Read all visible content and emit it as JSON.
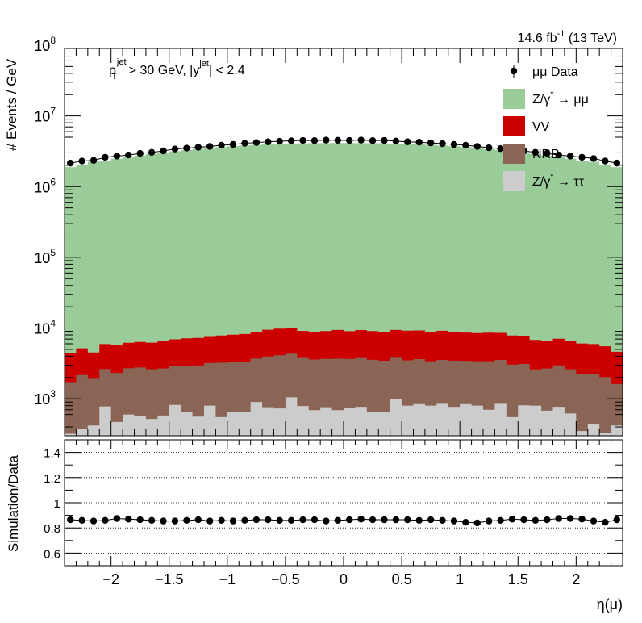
{
  "chart_data": [
    {
      "type": "area",
      "stacked": true,
      "yscale": "log",
      "title": "",
      "lumi_label": "14.6 fb",
      "lumi_sup": "-1",
      "energy_label": " (13 TeV)",
      "cut_label": {
        "p": "p",
        "p_sup": "jet",
        "p_sub": "T",
        "mid": " > 30 GeV,  |y",
        "y_sup": "jet",
        "end": "| < 2.4"
      },
      "ylabel": "# Events / GeV",
      "xlim": [
        -2.4,
        2.4
      ],
      "ylim": [
        300,
        90000000
      ],
      "y_ticks": [
        {
          "value": 1000,
          "base": "10",
          "exp": "3"
        },
        {
          "value": 10000,
          "base": "10",
          "exp": "4"
        },
        {
          "value": 100000,
          "base": "10",
          "exp": "5"
        },
        {
          "value": 1000000,
          "base": "10",
          "exp": "6"
        },
        {
          "value": 10000000,
          "base": "10",
          "exp": "7"
        },
        {
          "value": 100000000,
          "base": "10",
          "exp": "8"
        }
      ],
      "bin_width": 0.1,
      "bin_centers": [
        -2.35,
        -2.25,
        -2.15,
        -2.05,
        -1.95,
        -1.85,
        -1.75,
        -1.65,
        -1.55,
        -1.45,
        -1.35,
        -1.25,
        -1.15,
        -1.05,
        -0.95,
        -0.85,
        -0.75,
        -0.65,
        -0.55,
        -0.45,
        -0.35,
        -0.25,
        -0.15,
        -0.05,
        0.05,
        0.15,
        0.25,
        0.35,
        0.45,
        0.55,
        0.65,
        0.75,
        0.85,
        0.95,
        1.05,
        1.15,
        1.25,
        1.35,
        1.45,
        1.55,
        1.65,
        1.75,
        1.85,
        1.95,
        2.05,
        2.15,
        2.25,
        2.35
      ],
      "series": [
        {
          "name": "Z/γ* → ττ",
          "legend_base": "Z/γ",
          "legend_sup": "*",
          "legend_end": " → ττ",
          "color": "#cccccc",
          "values": [
            320,
            370,
            420,
            780,
            470,
            600,
            570,
            520,
            580,
            820,
            650,
            560,
            800,
            550,
            650,
            660,
            900,
            760,
            730,
            1050,
            790,
            690,
            760,
            690,
            750,
            770,
            660,
            660,
            1000,
            800,
            840,
            800,
            850,
            770,
            840,
            800,
            700,
            850,
            550,
            810,
            800,
            680,
            770,
            620,
            350,
            440,
            330,
            420
          ]
        },
        {
          "name": "NRB",
          "legend_base": "NRB",
          "color": "#8a6555",
          "values": [
            1400,
            1800,
            1500,
            1850,
            1850,
            2100,
            2200,
            2100,
            2100,
            2100,
            2300,
            2400,
            2400,
            2700,
            2700,
            2700,
            2800,
            3200,
            3400,
            3300,
            3000,
            2900,
            2900,
            3000,
            2900,
            3000,
            2900,
            2800,
            2800,
            2700,
            2800,
            2600,
            2700,
            2700,
            2600,
            2600,
            2700,
            2700,
            2500,
            2300,
            1800,
            2000,
            2200,
            2000,
            1900,
            1800,
            1700,
            1200
          ]
        },
        {
          "name": "VV",
          "legend_base": "VV",
          "color": "#cc0000",
          "values": [
            2700,
            3000,
            2600,
            3300,
            3400,
            3500,
            3600,
            3600,
            3800,
            4000,
            4200,
            4300,
            4500,
            4600,
            4700,
            4900,
            5200,
            5500,
            5700,
            5600,
            5300,
            5200,
            5400,
            5700,
            5400,
            5600,
            5500,
            5400,
            5600,
            5700,
            5600,
            5400,
            5600,
            5300,
            5200,
            5100,
            5200,
            5000,
            4800,
            4700,
            4200,
            3900,
            4100,
            4000,
            3800,
            3700,
            3500,
            3000
          ]
        },
        {
          "name": "Z/γ* → μμ",
          "legend_base": "Z/γ",
          "legend_sup": "*",
          "legend_end": " → μμ",
          "color": "#99cc99",
          "values": [
            1880000,
            2000000,
            2240000,
            2330000,
            2480000,
            2620000,
            2750000,
            2880000,
            3020000,
            3150000,
            3280000,
            3400000,
            3510000,
            3620000,
            3720000,
            3810000,
            3890000,
            3960000,
            4010000,
            4050000,
            4080000,
            4100000,
            4110000,
            4120000,
            4120000,
            4110000,
            4100000,
            4080000,
            4050000,
            4010000,
            3960000,
            3890000,
            3810000,
            3720000,
            3620000,
            3510000,
            3400000,
            3280000,
            3150000,
            3020000,
            2880000,
            2750000,
            2620000,
            2480000,
            2330000,
            2240000,
            2000000,
            1880000
          ]
        }
      ],
      "data_series": {
        "name": "μμ Data",
        "legend_label": "μμ Data",
        "values": [
          2150000,
          2300000,
          2350000,
          2600000,
          2700000,
          2800000,
          2950000,
          3050000,
          3200000,
          3400000,
          3500000,
          3600000,
          3700000,
          3850000,
          3950000,
          4100000,
          4200000,
          4300000,
          4380000,
          4450000,
          4500000,
          4480000,
          4550000,
          4520000,
          4500000,
          4550000,
          4480000,
          4500000,
          4400000,
          4300000,
          4250000,
          4150000,
          4050000,
          3950000,
          3850000,
          3700000,
          3550000,
          3450000,
          3300000,
          3200000,
          3050000,
          2950000,
          2800000,
          2700000,
          2600000,
          2500000,
          2300000,
          2150000
        ]
      },
      "legend_position": "top-right"
    },
    {
      "type": "scatter",
      "ylabel": "Simulation/Data",
      "xlabel": "η(μ)",
      "xlim": [
        -2.4,
        2.4
      ],
      "ylim": [
        0.5,
        1.5
      ],
      "y_ticks": [
        0.6,
        0.8,
        1,
        1.2,
        1.4
      ],
      "y_tick_labels": [
        "0.6",
        "0.8",
        "1",
        "1.2",
        "1.4"
      ],
      "x_ticks": [
        -2,
        -1.5,
        -1,
        -0.5,
        0,
        0.5,
        1,
        1.5,
        2
      ],
      "x_tick_labels": [
        "−2",
        "−1.5",
        "−1",
        "−0.5",
        "0",
        "0.5",
        "1",
        "1.5",
        "2"
      ],
      "grid_lines": [
        0.6,
        0.8,
        1.0,
        1.2,
        1.4
      ],
      "reference_line": 1.0,
      "x": [
        -2.35,
        -2.25,
        -2.15,
        -2.05,
        -1.95,
        -1.85,
        -1.75,
        -1.65,
        -1.55,
        -1.45,
        -1.35,
        -1.25,
        -1.15,
        -1.05,
        -0.95,
        -0.85,
        -0.75,
        -0.65,
        -0.55,
        -0.45,
        -0.35,
        -0.25,
        -0.15,
        -0.05,
        0.05,
        0.15,
        0.25,
        0.35,
        0.45,
        0.55,
        0.65,
        0.75,
        0.85,
        0.95,
        1.05,
        1.15,
        1.25,
        1.35,
        1.45,
        1.55,
        1.65,
        1.75,
        1.85,
        1.95,
        2.05,
        2.15,
        2.25,
        2.35
      ],
      "values": [
        0.865,
        0.86,
        0.855,
        0.86,
        0.875,
        0.87,
        0.865,
        0.86,
        0.855,
        0.855,
        0.86,
        0.865,
        0.855,
        0.86,
        0.855,
        0.86,
        0.865,
        0.865,
        0.86,
        0.86,
        0.865,
        0.865,
        0.855,
        0.86,
        0.865,
        0.87,
        0.865,
        0.865,
        0.865,
        0.865,
        0.86,
        0.865,
        0.86,
        0.855,
        0.845,
        0.84,
        0.855,
        0.86,
        0.87,
        0.865,
        0.86,
        0.865,
        0.875,
        0.875,
        0.87,
        0.855,
        0.845,
        0.865
      ]
    }
  ]
}
